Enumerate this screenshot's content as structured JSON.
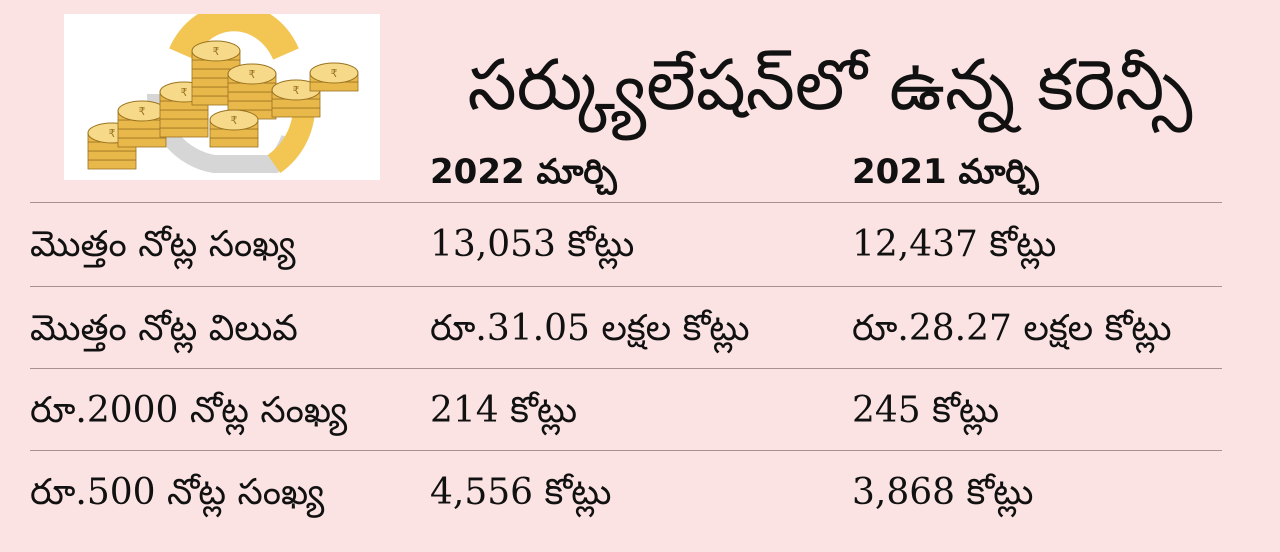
{
  "title": "సర్క్యులేషన్‌లో ఉన్న కరెన్సీ",
  "columns": [
    "2022 మార్చి",
    "2021 మార్చి"
  ],
  "rows": [
    {
      "label": "మొత్తం నోట్ల సంఖ్య",
      "v2022": "13,053 కోట్లు",
      "v2021": "12,437 కోట్లు"
    },
    {
      "label": "మొత్తం నోట్ల విలువ",
      "v2022": "రూ.31.05 లక్షల కోట్లు",
      "v2021": "రూ.28.27 లక్షల కోట్లు"
    },
    {
      "label": "రూ.2000 నోట్ల సంఖ్య",
      "v2022": "214 కోట్లు",
      "v2021": "245 కోట్లు"
    },
    {
      "label": "రూ.500 నోట్ల సంఖ్య",
      "v2022": "4,556 కోట్లు",
      "v2021": "3,868 కోట్లు"
    }
  ],
  "logo": {
    "icon": "coin-stack-icon",
    "coin_symbol": "₹",
    "colors": {
      "gold": "#e9b84a",
      "gold_dark": "#9a7420",
      "ring": "#f3c653",
      "ring_shadow": "#cfcfcf"
    }
  }
}
